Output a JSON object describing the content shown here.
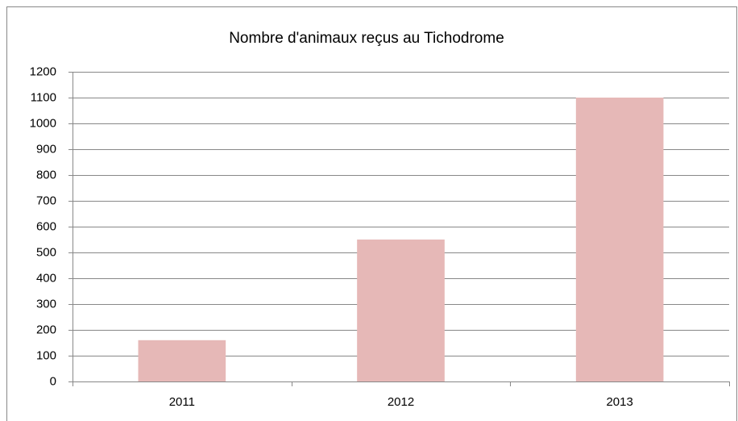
{
  "chart_data": {
    "type": "bar",
    "title": "Nombre d'animaux reçus au Tichodrome",
    "categories": [
      "2011",
      "2012",
      "2013"
    ],
    "values": [
      160,
      550,
      1100
    ],
    "color": "#e6b8b7",
    "ylim": [
      0,
      1200
    ],
    "yticks": [
      0,
      100,
      200,
      300,
      400,
      500,
      600,
      700,
      800,
      900,
      1000,
      1100,
      1200
    ],
    "grid": true
  }
}
